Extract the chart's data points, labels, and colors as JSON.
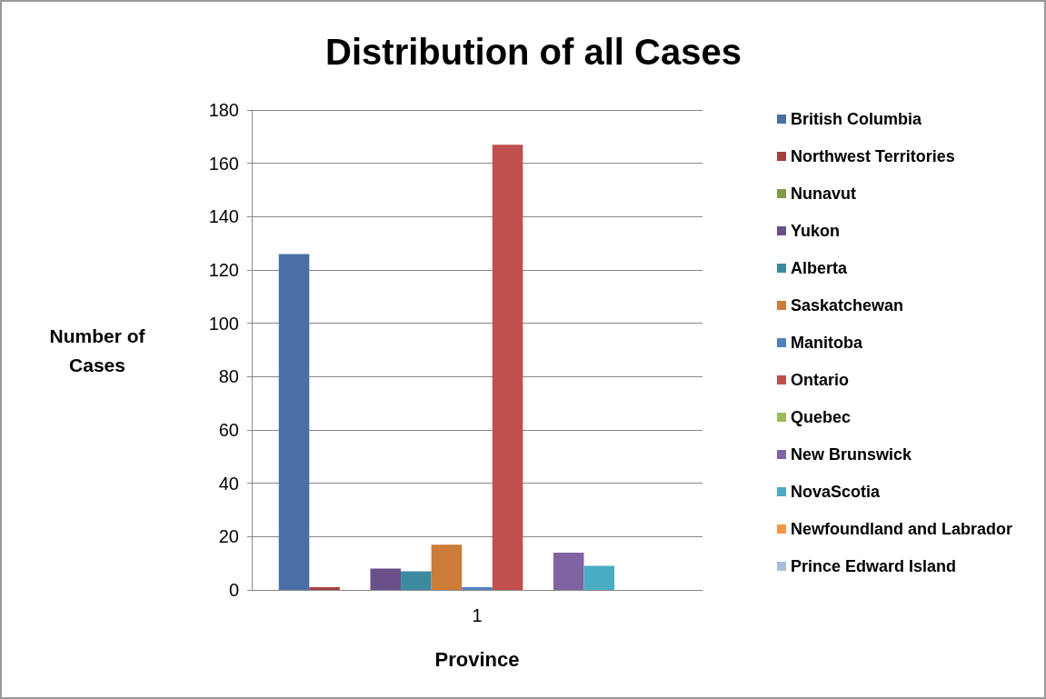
{
  "chart_data": {
    "type": "bar",
    "title": "Distribution of all Cases",
    "xlabel": "Province",
    "ylabel": "Number of\nCases",
    "categories": [
      "1"
    ],
    "series": [
      {
        "name": "British Columbia",
        "color": "#4a6fa5",
        "values": [
          126
        ]
      },
      {
        "name": "Northwest Territories",
        "color": "#a5403e",
        "values": [
          1
        ]
      },
      {
        "name": "Nunavut",
        "color": "#7d9a48",
        "values": [
          0
        ]
      },
      {
        "name": "Yukon",
        "color": "#6a5088",
        "values": [
          8
        ]
      },
      {
        "name": "Alberta",
        "color": "#3c8aa0",
        "values": [
          7
        ]
      },
      {
        "name": "Saskatchewan",
        "color": "#cd7b38",
        "values": [
          17
        ]
      },
      {
        "name": "Manitoba",
        "color": "#4f81bd",
        "values": [
          1
        ]
      },
      {
        "name": "Ontario",
        "color": "#c0504d",
        "values": [
          167
        ]
      },
      {
        "name": "Quebec",
        "color": "#9bbb59",
        "values": [
          0
        ]
      },
      {
        "name": "New Brunswick",
        "color": "#8064a2",
        "values": [
          14
        ]
      },
      {
        "name": "NovaScotia",
        "color": "#4bacc6",
        "values": [
          9
        ]
      },
      {
        "name": "Newfoundland and Labrador",
        "color": "#f79646",
        "values": [
          0
        ]
      },
      {
        "name": "Prince Edward Island",
        "color": "#a9bcdc",
        "values": [
          0
        ]
      }
    ],
    "ylim": [
      0,
      180
    ],
    "yticks": [
      0,
      20,
      40,
      60,
      80,
      100,
      120,
      140,
      160,
      180
    ],
    "grid": "y",
    "legend": "right"
  }
}
